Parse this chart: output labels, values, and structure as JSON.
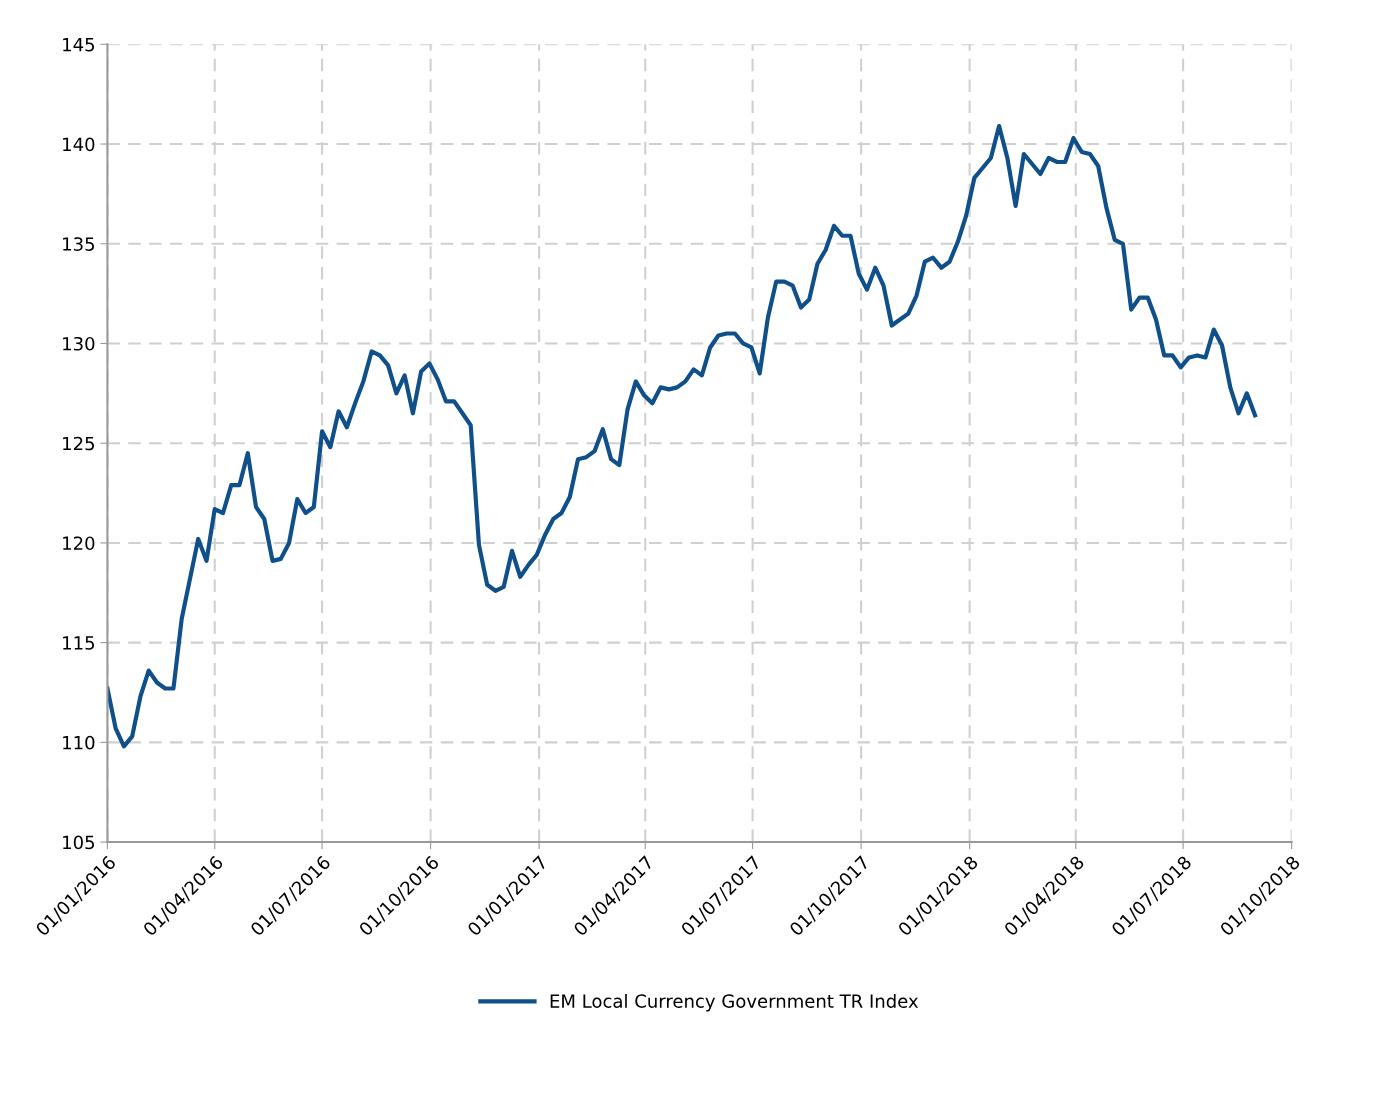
{
  "chart_data": {
    "type": "line",
    "x": [
      "2016-01-01",
      "2016-01-08",
      "2016-01-15",
      "2016-01-22",
      "2016-01-29",
      "2016-02-05",
      "2016-02-12",
      "2016-02-19",
      "2016-02-26",
      "2016-03-04",
      "2016-03-11",
      "2016-03-18",
      "2016-03-25",
      "2016-04-01",
      "2016-04-08",
      "2016-04-15",
      "2016-04-22",
      "2016-04-29",
      "2016-05-06",
      "2016-05-13",
      "2016-05-20",
      "2016-05-27",
      "2016-06-03",
      "2016-06-10",
      "2016-06-17",
      "2016-06-24",
      "2016-07-01",
      "2016-07-08",
      "2016-07-15",
      "2016-07-22",
      "2016-07-29",
      "2016-08-05",
      "2016-08-12",
      "2016-08-19",
      "2016-08-26",
      "2016-09-02",
      "2016-09-09",
      "2016-09-16",
      "2016-09-23",
      "2016-09-30",
      "2016-10-07",
      "2016-10-14",
      "2016-10-21",
      "2016-10-28",
      "2016-11-04",
      "2016-11-11",
      "2016-11-18",
      "2016-11-25",
      "2016-12-02",
      "2016-12-09",
      "2016-12-16",
      "2016-12-23",
      "2016-12-30",
      "2017-01-06",
      "2017-01-13",
      "2017-01-20",
      "2017-01-27",
      "2017-02-03",
      "2017-02-10",
      "2017-02-17",
      "2017-02-24",
      "2017-03-03",
      "2017-03-10",
      "2017-03-17",
      "2017-03-24",
      "2017-03-31",
      "2017-04-07",
      "2017-04-14",
      "2017-04-21",
      "2017-04-28",
      "2017-05-05",
      "2017-05-12",
      "2017-05-19",
      "2017-05-26",
      "2017-06-02",
      "2017-06-09",
      "2017-06-16",
      "2017-06-23",
      "2017-06-30",
      "2017-07-07",
      "2017-07-14",
      "2017-07-21",
      "2017-07-28",
      "2017-08-04",
      "2017-08-11",
      "2017-08-18",
      "2017-08-25",
      "2017-09-01",
      "2017-09-08",
      "2017-09-15",
      "2017-09-22",
      "2017-09-29",
      "2017-10-06",
      "2017-10-13",
      "2017-10-20",
      "2017-10-27",
      "2017-11-03",
      "2017-11-10",
      "2017-11-17",
      "2017-11-24",
      "2017-12-01",
      "2017-12-08",
      "2017-12-15",
      "2017-12-22",
      "2017-12-29",
      "2018-01-05",
      "2018-01-12",
      "2018-01-19",
      "2018-01-26",
      "2018-02-02",
      "2018-02-09",
      "2018-02-16",
      "2018-02-23",
      "2018-03-02",
      "2018-03-09",
      "2018-03-16",
      "2018-03-23",
      "2018-03-30",
      "2018-04-06",
      "2018-04-13",
      "2018-04-20",
      "2018-04-27",
      "2018-05-04",
      "2018-05-11",
      "2018-05-18",
      "2018-05-25",
      "2018-06-01",
      "2018-06-08",
      "2018-06-15",
      "2018-06-22",
      "2018-06-29",
      "2018-07-06",
      "2018-07-13",
      "2018-07-20",
      "2018-07-27",
      "2018-08-03",
      "2018-08-10",
      "2018-08-17",
      "2018-08-24",
      "2018-08-31"
    ],
    "series": [
      {
        "name": "EM Local Currency Government TR Index",
        "color": "#0f4f8a",
        "values": [
          112.7,
          110.7,
          109.8,
          110.3,
          112.3,
          113.6,
          113.0,
          112.7,
          112.7,
          116.2,
          118.2,
          120.2,
          119.1,
          121.7,
          121.5,
          122.9,
          122.9,
          124.5,
          121.8,
          121.2,
          119.1,
          119.2,
          120.0,
          122.2,
          121.5,
          121.8,
          125.6,
          124.8,
          126.6,
          125.8,
          127.0,
          128.1,
          129.6,
          129.4,
          128.9,
          127.5,
          128.4,
          126.5,
          128.6,
          129.0,
          128.2,
          127.1,
          127.1,
          126.5,
          125.9,
          119.9,
          117.9,
          117.6,
          117.8,
          119.6,
          118.3,
          118.9,
          119.4,
          120.4,
          121.2,
          121.5,
          122.3,
          124.2,
          124.3,
          124.6,
          125.7,
          124.2,
          123.9,
          126.7,
          128.1,
          127.4,
          127.0,
          127.8,
          127.7,
          127.8,
          128.1,
          128.7,
          128.4,
          129.8,
          130.4,
          130.5,
          130.5,
          130.0,
          129.8,
          128.5,
          131.3,
          133.1,
          133.1,
          132.9,
          131.8,
          132.2,
          134.0,
          134.7,
          135.9,
          135.4,
          135.4,
          133.5,
          132.7,
          133.8,
          132.9,
          130.9,
          131.2,
          131.5,
          132.4,
          134.1,
          134.3,
          133.8,
          134.1,
          135.1,
          136.4,
          138.3,
          138.8,
          139.3,
          140.9,
          139.3,
          136.9,
          139.5,
          139.0,
          138.5,
          139.3,
          139.1,
          139.1,
          140.3,
          139.6,
          139.5,
          138.9,
          136.8,
          135.2,
          135.0,
          131.7,
          132.3,
          132.3,
          131.2,
          129.4,
          129.4,
          128.8,
          129.3,
          129.4,
          129.3,
          130.7,
          129.9,
          127.8,
          126.5,
          127.5,
          126.4
        ]
      }
    ],
    "xlim": [
      "2016-01-01",
      "2018-10-01"
    ],
    "xticks": [
      {
        "value": "2016-01-01",
        "label": "01/01/2016"
      },
      {
        "value": "2016-04-01",
        "label": "01/04/2016"
      },
      {
        "value": "2016-07-01",
        "label": "01/07/2016"
      },
      {
        "value": "2016-10-01",
        "label": "01/10/2016"
      },
      {
        "value": "2017-01-01",
        "label": "01/01/2017"
      },
      {
        "value": "2017-04-01",
        "label": "01/04/2017"
      },
      {
        "value": "2017-07-01",
        "label": "01/07/2017"
      },
      {
        "value": "2017-10-01",
        "label": "01/10/2017"
      },
      {
        "value": "2018-01-01",
        "label": "01/01/2018"
      },
      {
        "value": "2018-04-01",
        "label": "01/04/2018"
      },
      {
        "value": "2018-07-01",
        "label": "01/07/2018"
      },
      {
        "value": "2018-10-01",
        "label": "01/10/2018"
      }
    ],
    "ylim": [
      105,
      145
    ],
    "yticks": [
      105,
      110,
      115,
      120,
      125,
      130,
      135,
      140,
      145
    ],
    "grid": true,
    "legend": "bottom",
    "marker": "none",
    "line_style": "solid"
  }
}
